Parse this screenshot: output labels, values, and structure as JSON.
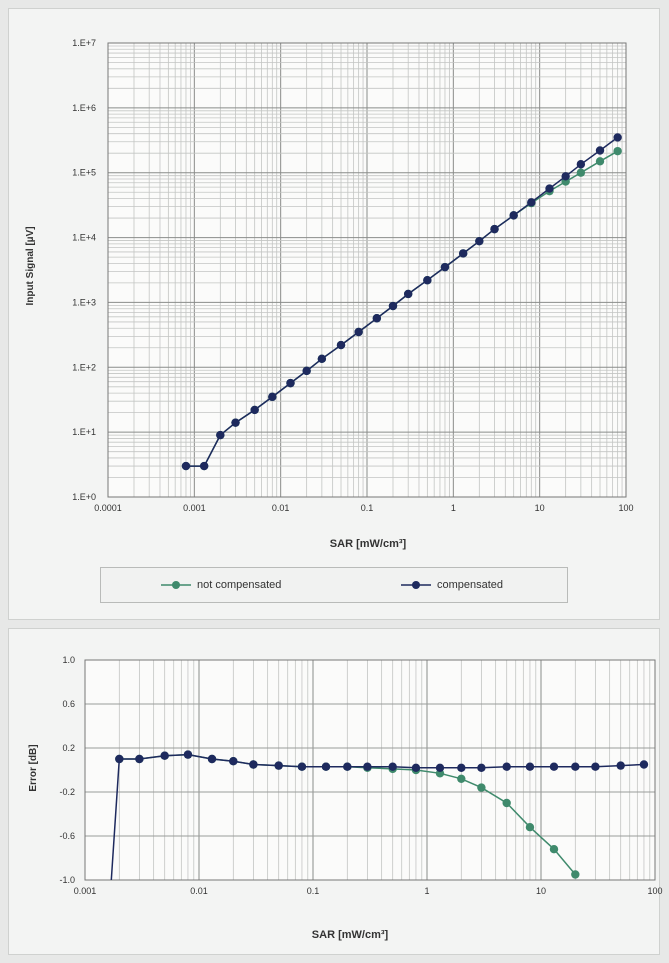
{
  "chart_data": [
    {
      "type": "line",
      "ylabel": "Input Signal  [µV]",
      "xlabel": "SAR [mW/cm³]",
      "x_scale": "log",
      "y_scale": "log",
      "xlim": [
        0.0001,
        100
      ],
      "ylim": [
        1,
        10000000
      ],
      "x_tick_labels": [
        "0.0001",
        "0.001",
        "0.01",
        "0.1",
        "1",
        "10",
        "100"
      ],
      "y_tick_labels": [
        "1.E+0",
        "1.E+1",
        "1.E+2",
        "1.E+3",
        "1.E+4",
        "1.E+5",
        "1.E+6",
        "1.E+7"
      ],
      "grid": true,
      "legend": "bottom",
      "series": [
        {
          "name": "not compensated",
          "color": "#3f8a6c",
          "x": [
            0.0008,
            0.0013,
            0.002,
            0.003,
            0.005,
            0.008,
            0.013,
            0.02,
            0.03,
            0.05,
            0.08,
            0.13,
            0.2,
            0.3,
            0.5,
            0.8,
            1.3,
            2,
            3,
            5,
            8,
            13,
            20,
            30,
            50,
            80
          ],
          "y": [
            3,
            3,
            9,
            14,
            22,
            35,
            57,
            88,
            135,
            220,
            350,
            570,
            880,
            1350,
            2200,
            3500,
            5700,
            8800,
            13500,
            22000,
            34000,
            52000,
            73000,
            100000,
            150000,
            215000
          ]
        },
        {
          "name": "compensated",
          "color": "#1e2a5e",
          "x": [
            0.0008,
            0.0013,
            0.002,
            0.003,
            0.005,
            0.008,
            0.013,
            0.02,
            0.03,
            0.05,
            0.08,
            0.13,
            0.2,
            0.3,
            0.5,
            0.8,
            1.3,
            2,
            3,
            5,
            8,
            13,
            20,
            30,
            50,
            80
          ],
          "y": [
            3,
            3,
            9,
            14,
            22,
            35,
            57,
            88,
            135,
            220,
            350,
            570,
            880,
            1350,
            2200,
            3500,
            5700,
            8800,
            13500,
            22000,
            35000,
            57000,
            88000,
            135000,
            220000,
            350000
          ]
        }
      ]
    },
    {
      "type": "line",
      "ylabel": "Error [dB]",
      "xlabel": "SAR [mW/cm³]",
      "x_scale": "log",
      "xlim": [
        0.001,
        100
      ],
      "ylim": [
        -1.0,
        1.0
      ],
      "x_tick_labels": [
        "0.001",
        "0.01",
        "0.1",
        "1",
        "10",
        "100"
      ],
      "y_tick_labels": [
        "1.0",
        "0.6",
        "0.2",
        "-0.2",
        "-0.6",
        "-1.0"
      ],
      "grid": true,
      "series": [
        {
          "name": "not compensated",
          "color": "#3f8a6c",
          "x": [
            0.002,
            0.003,
            0.005,
            0.008,
            0.013,
            0.02,
            0.03,
            0.05,
            0.08,
            0.13,
            0.2,
            0.3,
            0.5,
            0.8,
            1.3,
            2,
            3,
            5,
            8,
            13,
            20
          ],
          "y": [
            0.1,
            0.1,
            0.13,
            0.14,
            0.1,
            0.08,
            0.05,
            0.04,
            0.03,
            0.03,
            0.03,
            0.02,
            0.01,
            0.0,
            -0.03,
            -0.08,
            -0.16,
            -0.3,
            -0.52,
            -0.72,
            -0.95
          ]
        },
        {
          "name": "compensated",
          "color": "#1e2a5e",
          "x": [
            0.002,
            0.003,
            0.005,
            0.008,
            0.013,
            0.02,
            0.03,
            0.05,
            0.08,
            0.13,
            0.2,
            0.3,
            0.5,
            0.8,
            1.3,
            2,
            3,
            5,
            8,
            13,
            20,
            30,
            50,
            80
          ],
          "y": [
            0.1,
            0.1,
            0.13,
            0.14,
            0.1,
            0.08,
            0.05,
            0.04,
            0.03,
            0.03,
            0.03,
            0.03,
            0.03,
            0.02,
            0.02,
            0.02,
            0.02,
            0.03,
            0.03,
            0.03,
            0.03,
            0.03,
            0.04,
            0.05
          ]
        }
      ]
    }
  ]
}
